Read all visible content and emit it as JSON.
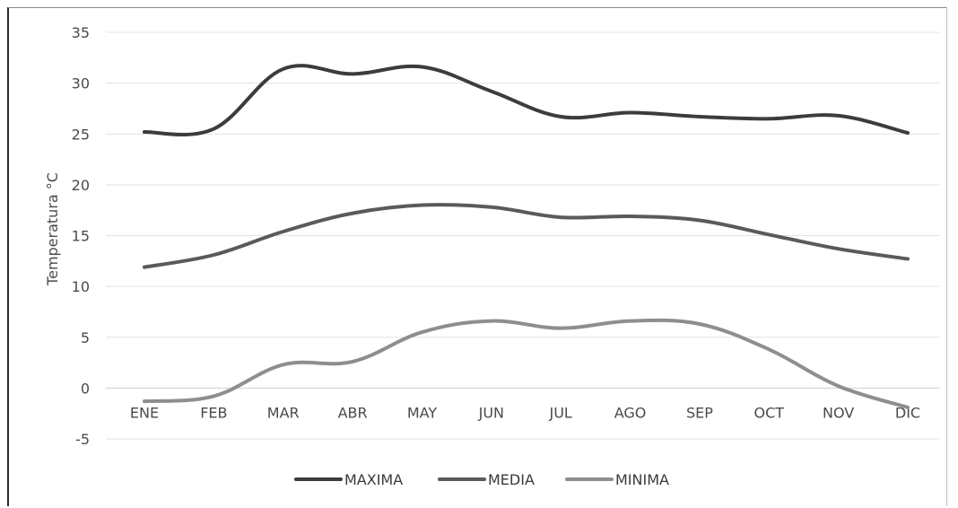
{
  "chart_data": {
    "type": "line",
    "ylabel": "Temperatura °C",
    "ylim": [
      -5,
      35
    ],
    "yticks": [
      35,
      30,
      25,
      20,
      15,
      10,
      5,
      0,
      -5
    ],
    "categories": [
      "ENE",
      "FEB",
      "MAR",
      "ABR",
      "MAY",
      "JUN",
      "JUL",
      "AGO",
      "SEP",
      "OCT",
      "NOV",
      "DIC"
    ],
    "grid": true,
    "legend": "bottom",
    "series": [
      {
        "name": "MAXIMA",
        "color": "#3c3c3c",
        "values": [
          25.2,
          25.5,
          31.4,
          30.9,
          31.6,
          29.2,
          26.7,
          27.1,
          26.7,
          26.5,
          26.8,
          25.1
        ]
      },
      {
        "name": "MEDIA",
        "color": "#5a5a5a",
        "values": [
          11.9,
          13.1,
          15.4,
          17.2,
          18.0,
          17.8,
          16.8,
          16.9,
          16.5,
          15.1,
          13.7,
          12.7
        ]
      },
      {
        "name": "MINIMA",
        "color": "#8e8e8e",
        "values": [
          -1.3,
          -0.8,
          2.3,
          2.6,
          5.5,
          6.6,
          5.9,
          6.6,
          6.3,
          3.8,
          0.2,
          -1.9
        ]
      }
    ]
  }
}
